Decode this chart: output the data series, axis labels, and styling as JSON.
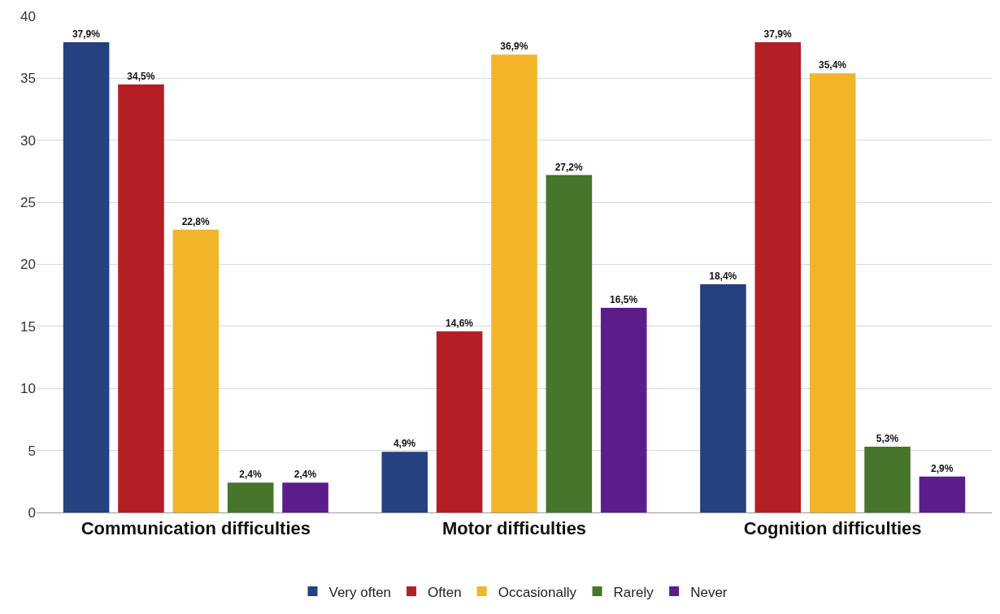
{
  "chart_data": {
    "type": "bar",
    "categories": [
      "Communication difficulties",
      "Motor difficulties",
      "Cognition difficulties"
    ],
    "series": [
      {
        "name": "Very often",
        "color": "#25417f",
        "values": [
          37.9,
          4.9,
          18.4
        ],
        "value_labels": [
          "37,9%",
          "4,9%",
          "18,4%"
        ]
      },
      {
        "name": "Often",
        "color": "#b51f24",
        "values": [
          34.5,
          14.6,
          37.9
        ],
        "value_labels": [
          "34,5%",
          "14,6%",
          "37,9%"
        ]
      },
      {
        "name": "Occasionally",
        "color": "#f2b52a",
        "values": [
          22.8,
          36.9,
          35.4
        ],
        "value_labels": [
          "22,8%",
          "36,9%",
          "35,4%"
        ]
      },
      {
        "name": "Rarely",
        "color": "#46752b",
        "values": [
          2.4,
          27.2,
          5.3
        ],
        "value_labels": [
          "2,4%",
          "27,2%",
          "5,3%"
        ]
      },
      {
        "name": "Never",
        "color": "#5c1d8c",
        "values": [
          2.4,
          16.5,
          2.9
        ],
        "value_labels": [
          "2,4%",
          "16,5%",
          "2,9%"
        ]
      }
    ],
    "ylim": [
      0,
      40
    ],
    "yticks": [
      0,
      5,
      10,
      15,
      20,
      25,
      30,
      35,
      40
    ],
    "grid": "y",
    "legend": "bottom"
  }
}
